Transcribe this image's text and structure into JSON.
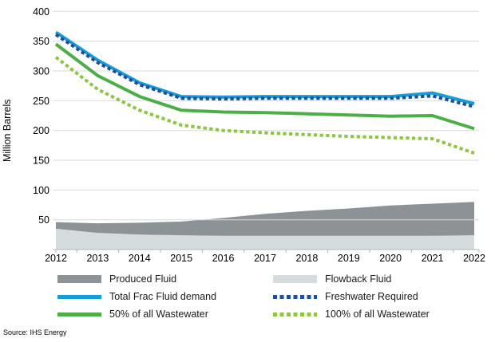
{
  "source": "Source: IHS Energy",
  "chart_data": {
    "type": "combo",
    "title": "",
    "xlabel": "",
    "ylabel": "Million Barrels",
    "x": [
      2012,
      2013,
      2014,
      2015,
      2016,
      2017,
      2018,
      2019,
      2020,
      2021,
      2022
    ],
    "ylim": [
      0,
      400
    ],
    "ytick_labels": [
      400,
      350,
      300,
      250,
      200,
      150,
      100,
      50
    ],
    "grid": true,
    "grid_color": "#D9D9D9",
    "axis_color": "#AEB4B7",
    "text_color": "#000000",
    "legend_position": "bottom",
    "series": [
      {
        "name": "Flowback Fluid",
        "type": "area",
        "stack": true,
        "color": "#D6DBDE",
        "values": [
          35,
          28,
          25,
          24,
          23,
          23,
          23,
          23,
          23,
          23,
          24
        ]
      },
      {
        "name": "Produced Fluid",
        "type": "area",
        "stack": true,
        "color": "#8C9296",
        "values": [
          11,
          16,
          20,
          23,
          30,
          37,
          42,
          46,
          51,
          54,
          56
        ]
      },
      {
        "name": "Total Frac Fluid demand",
        "type": "line",
        "style": "solid",
        "color": "#189CD8",
        "values": [
          365,
          318,
          280,
          257,
          256,
          257,
          257,
          257,
          257,
          263,
          245
        ]
      },
      {
        "name": "Freshwater Required",
        "type": "line",
        "style": "dotted",
        "color": "#1F4E9E",
        "values": [
          361,
          314,
          277,
          254,
          253,
          254,
          254,
          254,
          254,
          258,
          240
        ]
      },
      {
        "name": "50% of all Wastewater",
        "type": "line",
        "style": "solid",
        "color": "#4BAE46",
        "values": [
          345,
          292,
          257,
          234,
          231,
          230,
          228,
          226,
          224,
          225,
          203
        ]
      },
      {
        "name": "100% of all Wastewater",
        "type": "line",
        "style": "dotted",
        "color": "#8DC63F",
        "values": [
          323,
          269,
          234,
          209,
          200,
          196,
          193,
          190,
          188,
          186,
          162
        ]
      }
    ]
  },
  "legend": {
    "items": [
      {
        "label": "Produced Fluid",
        "swatch": "area",
        "color": "#8C9296"
      },
      {
        "label": "Flowback Fluid",
        "swatch": "area",
        "color": "#D6DBDE"
      },
      {
        "label": "Total Frac Fluid demand",
        "swatch": "line-solid",
        "color": "#189CD8"
      },
      {
        "label": "Freshwater Required",
        "swatch": "line-dotted",
        "color": "#1F4E9E"
      },
      {
        "label": "50% of all Wastewater",
        "swatch": "line-solid",
        "color": "#4BAE46"
      },
      {
        "label": "100% of all Wastewater",
        "swatch": "line-dotted",
        "color": "#8DC63F"
      }
    ]
  }
}
